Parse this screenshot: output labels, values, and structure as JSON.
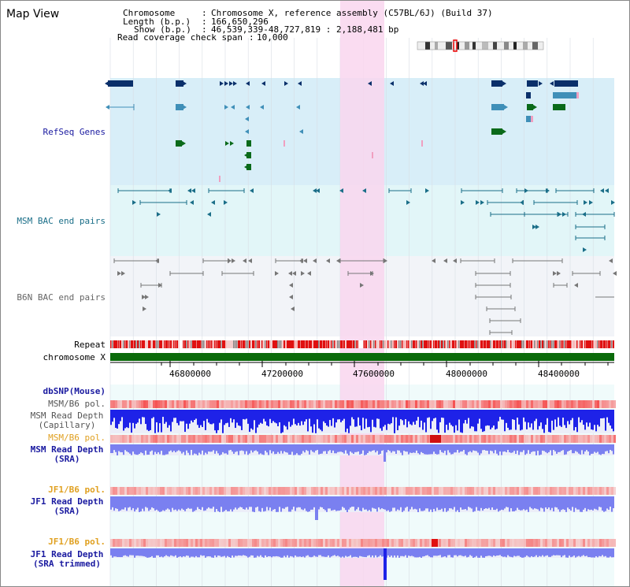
{
  "title": "Map View",
  "info": {
    "chromosome_label": "Chromosome",
    "chromosome_value": "Chromosome X, reference assembly (C57BL/6J) (Build 37)",
    "length_label": "Length (b.p.)",
    "length_value": "166,650,296",
    "show_label": "Show (b.p.)",
    "show_value": "46,539,339-48,727,819 : 2,188,481 bp",
    "coverage_label": "Read coverage check span",
    "coverage_value": "10,000"
  },
  "tracks": {
    "refseq": "RefSeq Genes",
    "msm_bac": "MSM BAC end pairs",
    "b6n_bac": "B6N BAC end pairs",
    "repeat": "Repeat",
    "chromosome": "chromosome X",
    "dbsnp": "dbSNP(Mouse)",
    "msm_b6_pol1": "MSM/B6 pol.",
    "msm_depth_cap_1": "MSM Read Depth",
    "msm_depth_cap_2": "(Capillary)",
    "msm_b6_pol2": "MSM/B6 pol.",
    "msm_depth_sra_1": "MSM Read Depth",
    "msm_depth_sra_2": "(SRA)",
    "jf1_b6_pol1": "JF1/B6 pol.",
    "jf1_depth_sra_1": "JF1 Read Depth",
    "jf1_depth_sra_2": "(SRA)",
    "jf1_b6_pol2": "JF1/B6 pol.",
    "jf1_depth_trim_1": "JF1 Read Depth",
    "jf1_depth_trim_2": "(SRA trimmed)"
  },
  "axis": {
    "ticks": [
      "46800000",
      "47200000",
      "47600000",
      "48000000",
      "48400000"
    ]
  },
  "colors": {
    "refseq_bg": "#d8eef8",
    "msm_bg": "#e2f6f8",
    "b6n_bg": "#f2f4f8",
    "highlight": "#f9d6ee",
    "gene_dark": "#0a2f6a",
    "gene_mid": "#3f8fb8",
    "gene_green": "#0a6a1a",
    "msm_line": "#1a6e88",
    "b6n_line": "#777777",
    "chrom_bar": "#0a6a0a",
    "repeat_red": "#e01010",
    "depth_blue": "#1e22e8",
    "depth_light": "#7a80f0",
    "pol_red": "#e83030",
    "label_blue": "#1a1aa0",
    "label_orange": "#e0a020",
    "label_teal": "#1a6e88"
  }
}
